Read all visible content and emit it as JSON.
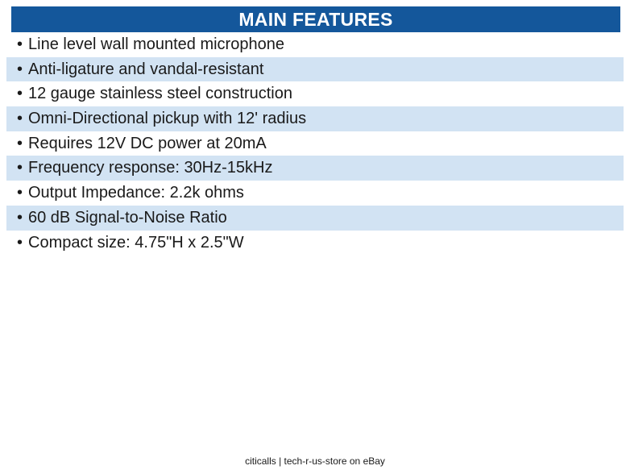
{
  "header": {
    "title": "MAIN FEATURES",
    "bg_color": "#14579B",
    "text_color": "#FFFFFF"
  },
  "features": [
    "Line level wall mounted microphone",
    "Anti-ligature and vandal-resistant",
    "12 gauge stainless steel construction",
    "Omni-Directional pickup with 12' radius",
    "Requires 12V DC power at 20mA",
    "Frequency response: 30Hz-15kHz",
    "Output Impedance: 2.2k ohms",
    "60 dB Signal-to-Noise Ratio",
    "Compact size: 4.75\"H x 2.5\"W"
  ],
  "list_style": {
    "bullet_glyph": "•",
    "alt_row_bg": "#D2E3F3",
    "row_bg": "#FFFFFF",
    "text_color": "#1A1A1A"
  },
  "footer": {
    "text": "citicalls | tech-r-us-store on eBay"
  }
}
